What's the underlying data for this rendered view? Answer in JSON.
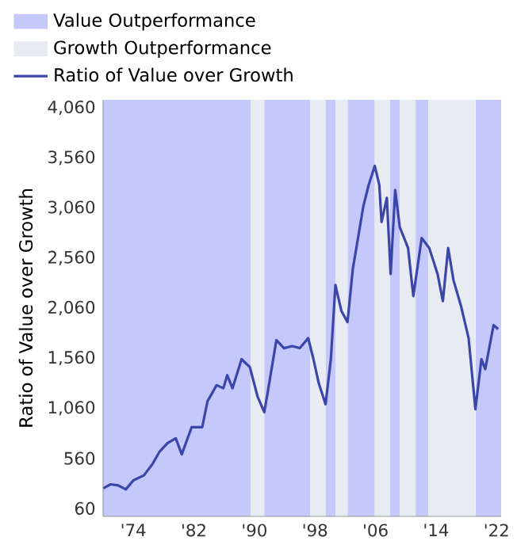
{
  "chart_data": {
    "type": "line",
    "ylabel": "Ratio of Value over Growth",
    "x": [
      1970.0,
      1971.0,
      1972.0,
      1973.0,
      1974.0,
      1975.4,
      1976.5,
      1977.5,
      1978.5,
      1979.6,
      1980.4,
      1981.7,
      1983.1,
      1983.8,
      1985.0,
      1985.9,
      1986.4,
      1987.1,
      1988.3,
      1989.4,
      1990.4,
      1991.3,
      1991.8,
      1992.9,
      1993.9,
      1995.0,
      1996.0,
      1997.1,
      1997.8,
      1998.5,
      1999.4,
      2000.1,
      2000.7,
      2001.5,
      2002.3,
      2003.0,
      2004.4,
      2005.1,
      2005.9,
      2006.5,
      2006.8,
      2007.5,
      2008.0,
      2008.6,
      2009.2,
      2010.3,
      2011.0,
      2012.1,
      2013.1,
      2014.2,
      2014.9,
      2015.6,
      2016.3,
      2017.3,
      2018.3,
      2019.2,
      2020.0,
      2020.5,
      2021.6,
      2022.2
    ],
    "series": [
      {
        "name": "Ratio of Value over Growth",
        "color": "#3a46a8",
        "values": [
          260,
          300,
          290,
          250,
          340,
          390,
          500,
          630,
          710,
          760,
          600,
          870,
          870,
          1130,
          1290,
          1260,
          1390,
          1260,
          1550,
          1470,
          1180,
          1020,
          1240,
          1740,
          1660,
          1680,
          1660,
          1760,
          1550,
          1310,
          1100,
          1550,
          2290,
          2030,
          1920,
          2450,
          3080,
          3290,
          3480,
          3290,
          2920,
          3160,
          2400,
          3240,
          2870,
          2660,
          2180,
          2760,
          2660,
          2400,
          2130,
          2660,
          2340,
          2080,
          1760,
          1050,
          1550,
          1450,
          1890,
          1850
        ]
      }
    ],
    "xlim": [
      1970,
      2022.6
    ],
    "ylim": [
      -20,
      4140
    ],
    "xticks": [
      {
        "value": 1974,
        "label": "'74"
      },
      {
        "value": 1982,
        "label": "'82"
      },
      {
        "value": 1990,
        "label": "'90"
      },
      {
        "value": 1998,
        "label": "'98"
      },
      {
        "value": 2006,
        "label": "'06"
      },
      {
        "value": 2014,
        "label": "'14"
      },
      {
        "value": 2022,
        "label": "'22"
      }
    ],
    "yticks": [
      60,
      560,
      {
        "value": 1060,
        "label": "1,060"
      },
      {
        "value": 1560,
        "label": "1,560"
      },
      {
        "value": 2060,
        "label": "2,060"
      },
      {
        "value": 2560,
        "label": "2,560"
      },
      {
        "value": 3060,
        "label": "3,060"
      },
      {
        "value": 3560,
        "label": "3,560"
      },
      {
        "value": 4060,
        "label": "4,060"
      }
    ],
    "bands": [
      {
        "axis": "x",
        "from": 1970,
        "to": 1989.5,
        "label": "Value Outperformance",
        "color": "#c4c8fb"
      },
      {
        "axis": "x",
        "from": 1991.3,
        "to": 1997.4,
        "color": "#c4c8fb"
      },
      {
        "axis": "x",
        "from": 1999.4,
        "to": 2000.7,
        "color": "#c4c8fb"
      },
      {
        "axis": "x",
        "from": 2002.3,
        "to": 2005.9,
        "color": "#c4c8fb"
      },
      {
        "axis": "x",
        "from": 2007.9,
        "to": 2009.2,
        "color": "#c4c8fb"
      },
      {
        "axis": "x",
        "from": 2011.3,
        "to": 2013.0,
        "color": "#c4c8fb"
      },
      {
        "axis": "x",
        "from": 2019.2,
        "to": 2022.6,
        "color": "#c4c8fb"
      },
      {
        "axis": "x",
        "from": 1989.5,
        "to": 1991.3,
        "label": "Growth Outperformance",
        "color": "#e8ebf2"
      },
      {
        "axis": "x",
        "from": 1997.4,
        "to": 1999.4,
        "color": "#e8ebf2"
      },
      {
        "axis": "x",
        "from": 2000.7,
        "to": 2002.3,
        "color": "#e8ebf2"
      },
      {
        "axis": "x",
        "from": 2005.9,
        "to": 2007.9,
        "color": "#e8ebf2"
      },
      {
        "axis": "x",
        "from": 2009.2,
        "to": 2011.3,
        "color": "#e8ebf2"
      },
      {
        "axis": "x",
        "from": 2013.0,
        "to": 2019.2,
        "color": "#e8ebf2"
      }
    ],
    "legend": "top left"
  }
}
